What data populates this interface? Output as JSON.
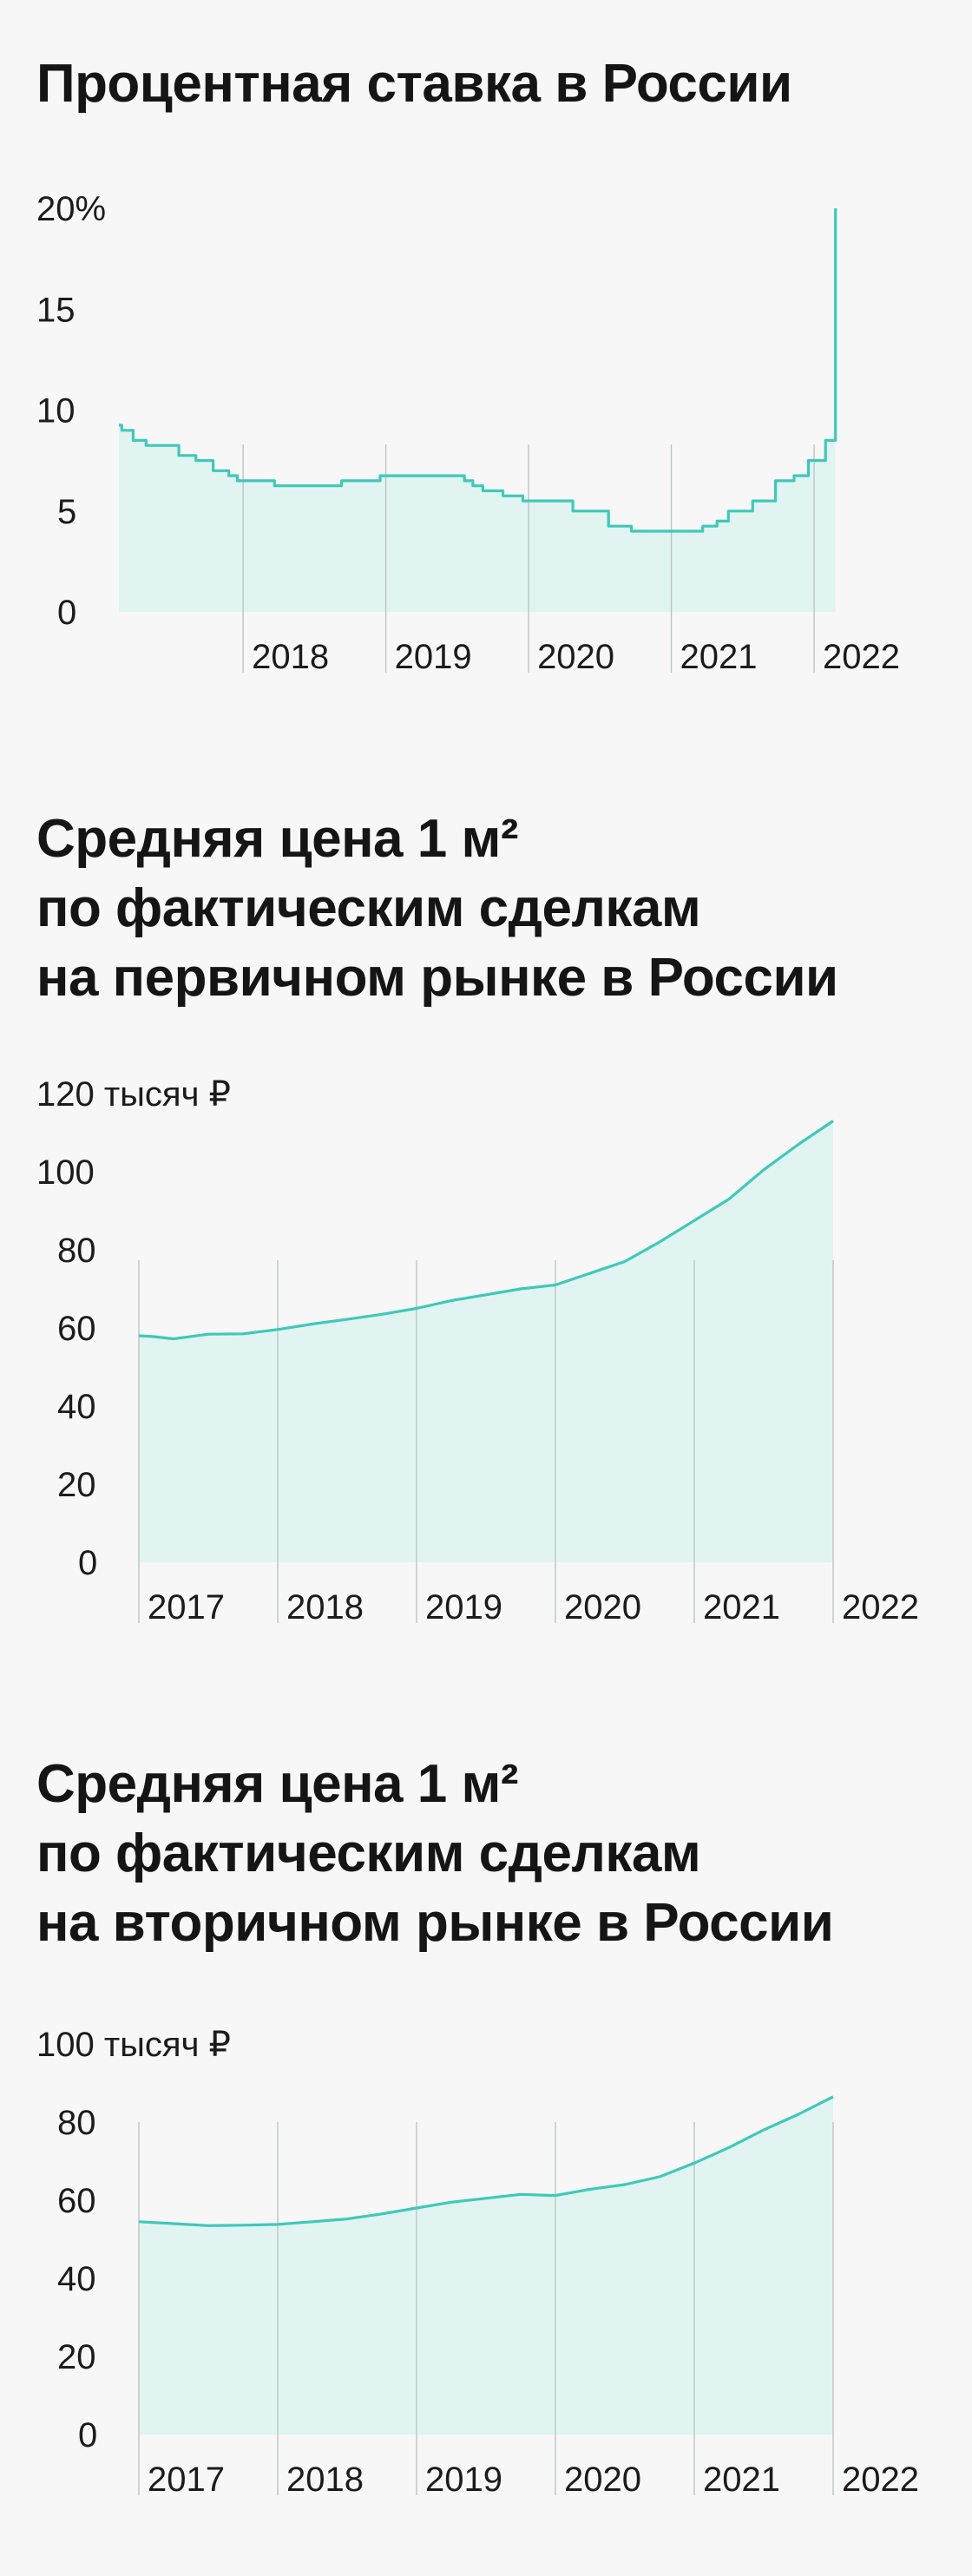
{
  "chart_data": [
    {
      "type": "area",
      "title": "Процентная ставка в России",
      "y_unit_label": "20%",
      "y_ticks": [
        "0",
        "5",
        "10",
        "15",
        "20%"
      ],
      "ylim": [
        0,
        20
      ],
      "x_ticks": [
        "2018",
        "2019",
        "2020",
        "2021",
        "2022"
      ],
      "xlim": [
        2017.13,
        2022.17
      ],
      "step": true,
      "grid": "vertical at year boundaries",
      "colors": {
        "line": "#3ec9b9",
        "fill": "#e1f4f1",
        "grid": "#b9c2c0"
      },
      "x": [
        2017.13,
        2017.15,
        2017.23,
        2017.32,
        2017.46,
        2017.55,
        2017.67,
        2017.79,
        2017.9,
        2017.96,
        2018.22,
        2018.69,
        2018.96,
        2019.46,
        2019.55,
        2019.61,
        2019.68,
        2019.82,
        2019.96,
        2020.11,
        2020.31,
        2020.56,
        2020.72,
        2021.22,
        2021.32,
        2021.4,
        2021.57,
        2021.73,
        2021.86,
        2021.96,
        2022.08,
        2022.15
      ],
      "values": [
        9.25,
        9.0,
        8.5,
        8.25,
        8.25,
        7.75,
        7.5,
        7.0,
        6.75,
        6.5,
        6.25,
        6.5,
        6.75,
        6.75,
        6.5,
        6.25,
        6.0,
        5.75,
        5.5,
        5.5,
        5.0,
        4.25,
        4.0,
        4.25,
        4.5,
        5.0,
        5.5,
        6.5,
        6.75,
        7.5,
        8.5,
        20.0
      ]
    },
    {
      "type": "area",
      "title": "Средняя цена 1 м²\nпо фактическим сделкам\nна первичном рынке в России",
      "y_unit_label": "120 тысяч ₽",
      "y_ticks": [
        "0",
        "20",
        "40",
        "60",
        "80",
        "100"
      ],
      "ylim": [
        0,
        120
      ],
      "x_ticks": [
        "2017",
        "2018",
        "2019",
        "2020",
        "2021",
        "2022"
      ],
      "xlim": [
        2017,
        2022
      ],
      "grid": "vertical at year boundaries",
      "colors": {
        "line": "#3ec9b9",
        "fill": "#e1f4f1",
        "grid": "#b9c2c0"
      },
      "x": [
        2017.0,
        2017.1,
        2017.25,
        2017.5,
        2017.75,
        2018.0,
        2018.25,
        2018.5,
        2018.75,
        2019.0,
        2019.25,
        2019.5,
        2019.75,
        2020.0,
        2020.25,
        2020.5,
        2020.75,
        2021.0,
        2021.25,
        2021.5,
        2021.75,
        2022.0
      ],
      "values": [
        58.0,
        57.8,
        57.2,
        58.4,
        58.5,
        59.6,
        61.0,
        62.2,
        63.5,
        65.0,
        67.0,
        68.5,
        70.0,
        71.0,
        74.0,
        77.0,
        82.0,
        87.5,
        93.0,
        100.5,
        107.0,
        113.0
      ]
    },
    {
      "type": "area",
      "title": "Средняя цена 1 м²\nпо фактическим сделкам\nна вторичном рынке в России",
      "y_unit_label": "100 тысяч ₽",
      "y_ticks": [
        "0",
        "20",
        "40",
        "60",
        "80"
      ],
      "ylim": [
        0,
        100
      ],
      "x_ticks": [
        "2017",
        "2018",
        "2019",
        "2020",
        "2021",
        "2022"
      ],
      "xlim": [
        2017,
        2022
      ],
      "grid": "vertical at year boundaries",
      "colors": {
        "line": "#3ec9b9",
        "fill": "#e1f4f1",
        "grid": "#b9c2c0"
      },
      "x": [
        2017.0,
        2017.25,
        2017.5,
        2017.75,
        2018.0,
        2018.25,
        2018.5,
        2018.75,
        2019.0,
        2019.25,
        2019.5,
        2019.75,
        2020.0,
        2020.25,
        2020.5,
        2020.75,
        2021.0,
        2021.25,
        2021.5,
        2021.75,
        2022.0
      ],
      "values": [
        54.5,
        54.0,
        53.5,
        53.6,
        53.8,
        54.5,
        55.2,
        56.5,
        58.0,
        59.5,
        60.5,
        61.5,
        61.2,
        62.8,
        64.0,
        66.0,
        69.5,
        73.5,
        78.0,
        82.0,
        86.5
      ]
    }
  ]
}
